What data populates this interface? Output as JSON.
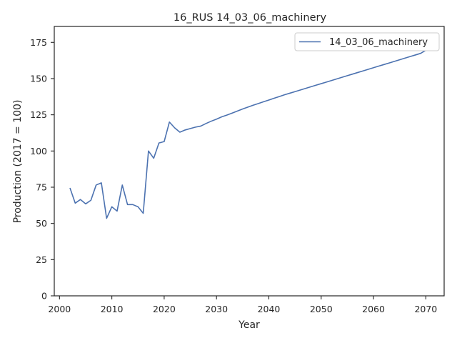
{
  "chart_data": {
    "type": "line",
    "title": "16_RUS 14_03_06_machinery",
    "xlabel": "Year",
    "ylabel": "Production (2017 = 100)",
    "xlim": [
      1999.0,
      2073.5
    ],
    "ylim": [
      0,
      186
    ],
    "xticks": [
      2000,
      2010,
      2020,
      2030,
      2040,
      2050,
      2060,
      2070
    ],
    "yticks": [
      0,
      25,
      50,
      75,
      100,
      125,
      150,
      175
    ],
    "grid": false,
    "legend_position": "top-right",
    "series": [
      {
        "name": "14_03_06_machinery",
        "color": "#4c72b0",
        "x": [
          2002,
          2003,
          2004,
          2005,
          2006,
          2007,
          2008,
          2009,
          2010,
          2011,
          2012,
          2013,
          2014,
          2015,
          2016,
          2017,
          2018,
          2019,
          2020,
          2021,
          2022,
          2023,
          2024,
          2025,
          2026,
          2027,
          2028,
          2029,
          2030,
          2031,
          2032,
          2033,
          2034,
          2035,
          2036,
          2037,
          2038,
          2039,
          2040,
          2041,
          2042,
          2043,
          2044,
          2045,
          2046,
          2047,
          2048,
          2049,
          2050,
          2051,
          2052,
          2053,
          2054,
          2055,
          2056,
          2057,
          2058,
          2059,
          2060,
          2061,
          2062,
          2063,
          2064,
          2065,
          2066,
          2067,
          2068,
          2069,
          2070
        ],
        "values": [
          74.5,
          64,
          66.5,
          63.5,
          66,
          76.5,
          78,
          53.5,
          61.5,
          58.5,
          76.5,
          63,
          63,
          61.5,
          57,
          100,
          95,
          105.5,
          106.5,
          120,
          116,
          113,
          114.5,
          115.5,
          116.5,
          117.2,
          119,
          120.6,
          122,
          123.6,
          124.8,
          126.2,
          127.6,
          129,
          130.3,
          131.6,
          132.8,
          134,
          135.2,
          136.4,
          137.6,
          138.8,
          139.9,
          141,
          142.1,
          143.2,
          144.3,
          145.4,
          146.5,
          147.6,
          148.7,
          149.8,
          150.9,
          152,
          153.1,
          154.2,
          155.3,
          156.4,
          157.5,
          158.6,
          159.7,
          160.8,
          161.9,
          163,
          164.1,
          165.2,
          166.3,
          167.4,
          169.5
        ]
      }
    ]
  }
}
